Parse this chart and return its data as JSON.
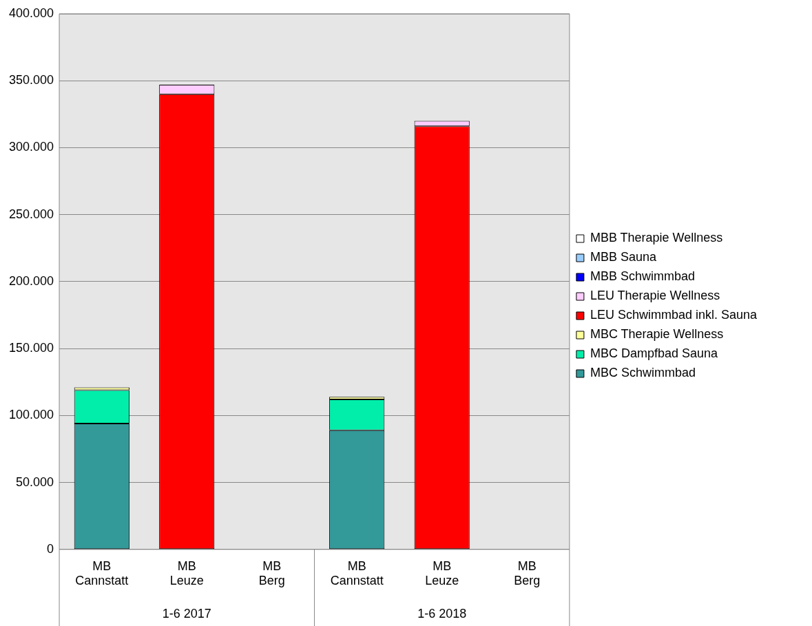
{
  "chart_data": {
    "type": "bar",
    "stacked": true,
    "categories": [
      "MB Cannstatt",
      "MB Leuze",
      "MB Berg",
      "MB Cannstatt",
      "MB Leuze",
      "MB Berg"
    ],
    "annotations": [
      "1-6 2017",
      "1-6 2018"
    ],
    "series": [
      {
        "name": "MBC Schwimmbad",
        "color": "#339999",
        "values": [
          94000,
          null,
          null,
          89000,
          null,
          null
        ]
      },
      {
        "name": "MBC Dampfbad Sauna",
        "color": "#00eeaa",
        "values": [
          25000,
          null,
          null,
          23000,
          null,
          null
        ]
      },
      {
        "name": "MBC Therapie Wellness",
        "color": "#ffff99",
        "values": [
          2000,
          null,
          null,
          2000,
          null,
          null
        ]
      },
      {
        "name": "LEU Schwimmbad inkl. Sauna",
        "color": "#ff0000",
        "values": [
          null,
          340000,
          null,
          null,
          316000,
          null
        ]
      },
      {
        "name": "LEU Therapie Wellness",
        "color": "#ffccff",
        "values": [
          null,
          7000,
          null,
          null,
          4000,
          null
        ]
      },
      {
        "name": "MBB Schwimmbad",
        "color": "#0000ff",
        "values": [
          null,
          null,
          null,
          null,
          null,
          null
        ]
      },
      {
        "name": "MBB Sauna",
        "color": "#99ccff",
        "values": [
          null,
          null,
          null,
          null,
          null,
          null
        ]
      },
      {
        "name": "MBB Therapie Wellness",
        "color": "#ffffff",
        "values": [
          null,
          null,
          null,
          null,
          null,
          null
        ]
      }
    ],
    "ylim": [
      0,
      400000
    ],
    "yticks": [
      {
        "value": 0,
        "label": "0"
      },
      {
        "value": 50000,
        "label": "50.000"
      },
      {
        "value": 100000,
        "label": "100.000"
      },
      {
        "value": 150000,
        "label": "150.000"
      },
      {
        "value": 200000,
        "label": "200.000"
      },
      {
        "value": 250000,
        "label": "250.000"
      },
      {
        "value": 300000,
        "label": "300.000"
      },
      {
        "value": 350000,
        "label": "350.000"
      },
      {
        "value": 400000,
        "label": "400.000"
      }
    ],
    "grid": "y",
    "legend": "right"
  }
}
